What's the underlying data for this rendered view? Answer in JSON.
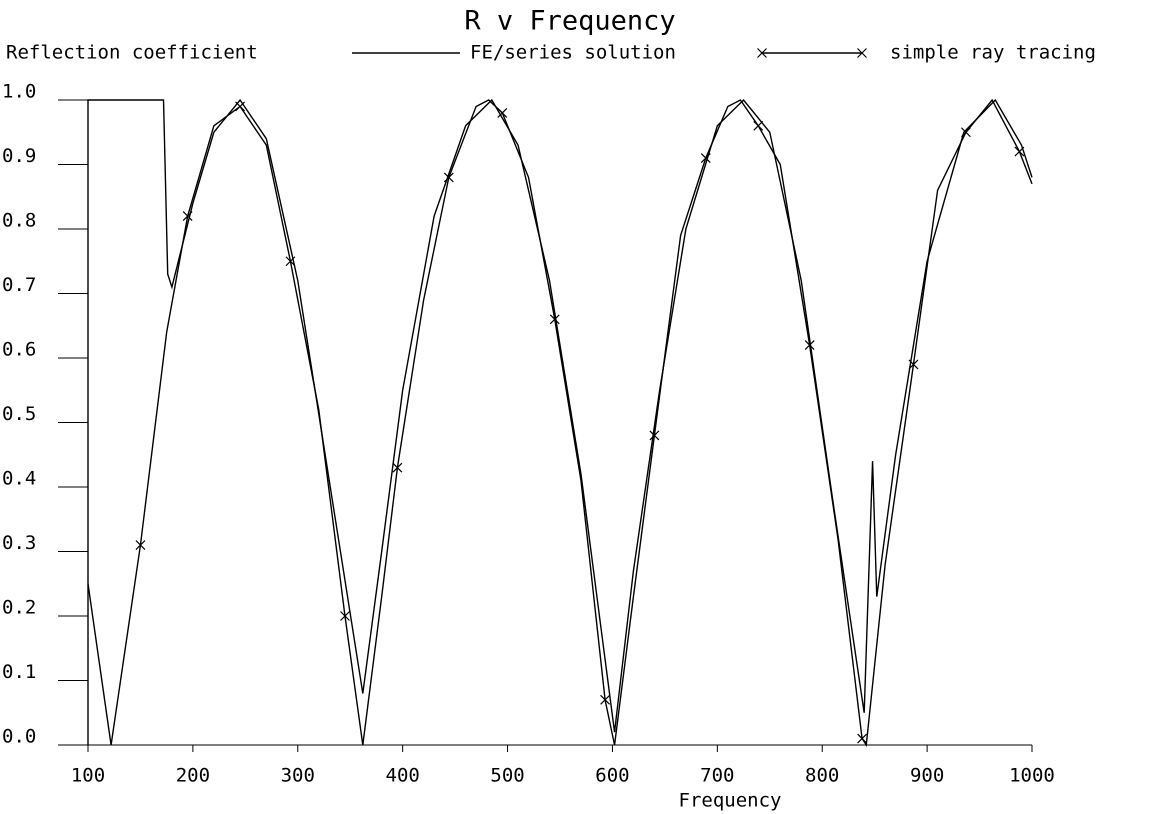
{
  "chart_data": {
    "type": "line",
    "title": "R v Frequency",
    "ylabel": "Reflection coefficient",
    "xlabel": "Frequency",
    "xlim": [
      100,
      1000
    ],
    "ylim": [
      0,
      1
    ],
    "xticks": [
      100,
      200,
      300,
      400,
      500,
      600,
      700,
      800,
      900,
      1000
    ],
    "yticks": [
      {
        "value": 0,
        "label": "0.0"
      },
      {
        "value": 0.1,
        "label": "0.1"
      },
      {
        "value": 0.2,
        "label": "0.2"
      },
      {
        "value": 0.3,
        "label": "0.3"
      },
      {
        "value": 0.4,
        "label": "0.4"
      },
      {
        "value": 0.5,
        "label": "0.5"
      },
      {
        "value": 0.6,
        "label": "0.6"
      },
      {
        "value": 0.7,
        "label": "0.7"
      },
      {
        "value": 0.8,
        "label": "0.8"
      },
      {
        "value": 0.9,
        "label": "0.9"
      },
      {
        "value": 1,
        "label": "1.0"
      }
    ],
    "series": [
      {
        "name": "FE/series solution",
        "color": "#000000",
        "marker": false,
        "x": [
          100,
          100,
          172,
          176,
          180,
          200,
          220,
          245,
          270,
          300,
          330,
          362,
          380,
          400,
          430,
          460,
          485,
          510,
          540,
          570,
          602,
          620,
          645,
          670,
          700,
          725,
          750,
          780,
          810,
          840,
          848,
          852,
          870,
          900,
          935,
          965,
          990,
          1000
        ],
        "values": [
          0,
          1,
          1,
          0.73,
          0.71,
          0.84,
          0.95,
          1,
          0.94,
          0.72,
          0.41,
          0.08,
          0.3,
          0.55,
          0.82,
          0.96,
          1,
          0.93,
          0.72,
          0.42,
          0.02,
          0.27,
          0.55,
          0.8,
          0.96,
          1,
          0.95,
          0.72,
          0.38,
          0.05,
          0.44,
          0.23,
          0.45,
          0.75,
          0.95,
          1,
          0.93,
          0.88
        ]
      },
      {
        "name": "simple ray tracing",
        "color": "#000000",
        "marker": true,
        "x": [
          100,
          122,
          150,
          175,
          195,
          220,
          245,
          270,
          293,
          320,
          345,
          362,
          380,
          395,
          420,
          444,
          470,
          482,
          495,
          520,
          545,
          570,
          593,
          602,
          620,
          640,
          665,
          689,
          710,
          722,
          739,
          760,
          788,
          815,
          838,
          842,
          860,
          887,
          910,
          937,
          962,
          988,
          1000
        ],
        "values": [
          0.25,
          0,
          0.31,
          0.64,
          0.82,
          0.96,
          0.99,
          0.93,
          0.75,
          0.52,
          0.2,
          0,
          0.23,
          0.43,
          0.69,
          0.88,
          0.99,
          1,
          0.98,
          0.88,
          0.66,
          0.41,
          0.07,
          0,
          0.23,
          0.48,
          0.79,
          0.91,
          0.99,
          1,
          0.96,
          0.9,
          0.62,
          0.32,
          0.01,
          0,
          0.28,
          0.59,
          0.86,
          0.95,
          1,
          0.92,
          0.87
        ],
        "marked": [
          false,
          false,
          true,
          false,
          true,
          false,
          true,
          false,
          true,
          false,
          true,
          false,
          false,
          true,
          false,
          true,
          false,
          false,
          true,
          false,
          true,
          false,
          true,
          false,
          false,
          true,
          false,
          true,
          false,
          false,
          true,
          false,
          true,
          false,
          true,
          false,
          false,
          true,
          false,
          true,
          false,
          true,
          false
        ]
      }
    ]
  }
}
